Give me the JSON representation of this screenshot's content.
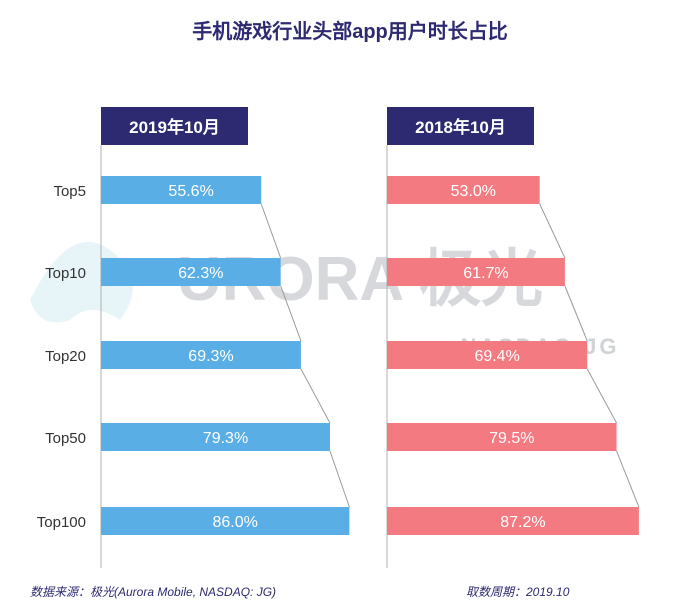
{
  "title": "手机游戏行业头部app用户时长占比",
  "watermark": {
    "brand": "URORA 极光",
    "sub": "NASDAQ:JG"
  },
  "footer": {
    "source": "数据来源：极光(Aurora Mobile, NASDAQ: JG)",
    "period": "取数周期：2019.10"
  },
  "colors": {
    "left_bar": "#5aaee6",
    "right_bar": "#f47a82",
    "header_bg": "#2e2a72",
    "title": "#2e2a72"
  },
  "chart_data": [
    {
      "type": "bar",
      "orientation": "horizontal",
      "header": "2019年10月",
      "categories": [
        "Top5",
        "Top10",
        "Top20",
        "Top50",
        "Top100"
      ],
      "values": [
        55.6,
        62.3,
        69.3,
        79.3,
        86.0
      ],
      "labels": [
        "55.6%",
        "62.3%",
        "69.3%",
        "79.3%",
        "86.0%"
      ],
      "color": "#5aaee6"
    },
    {
      "type": "bar",
      "orientation": "horizontal",
      "header": "2018年10月",
      "categories": [
        "Top5",
        "Top10",
        "Top20",
        "Top50",
        "Top100"
      ],
      "values": [
        53.0,
        61.7,
        69.4,
        79.5,
        87.2
      ],
      "labels": [
        "53.0%",
        "61.7%",
        "69.4%",
        "79.5%",
        "87.2%"
      ],
      "color": "#f47a82"
    }
  ]
}
